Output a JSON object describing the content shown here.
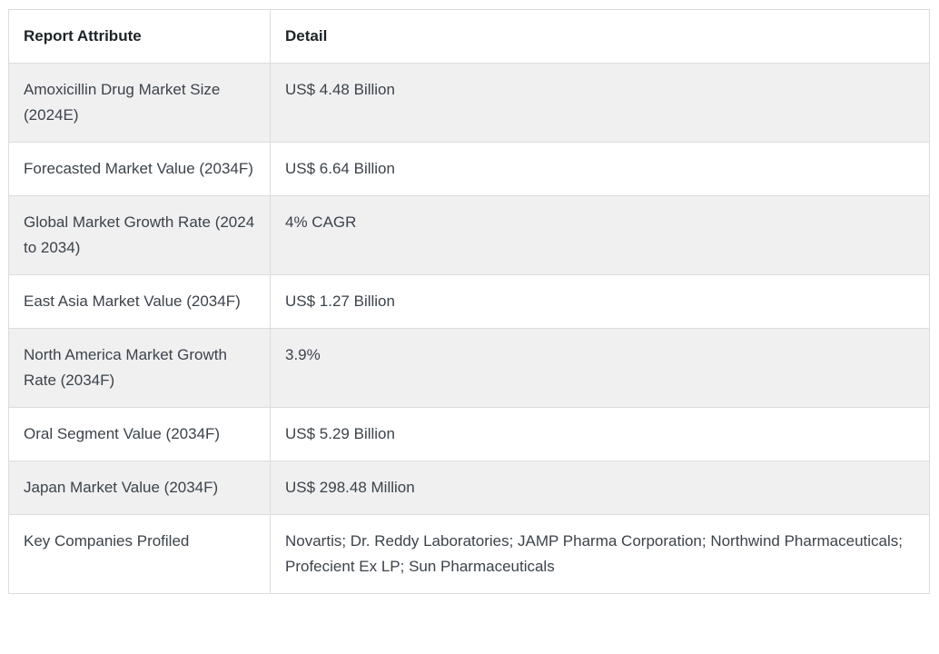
{
  "table": {
    "columns": [
      "Report Attribute",
      "Detail"
    ],
    "rows": [
      {
        "attribute": "Amoxicillin Drug Market Size (2024E)",
        "detail": "US$ 4.48 Billion"
      },
      {
        "attribute": "Forecasted Market Value (2034F)",
        "detail": "US$ 6.64 Billion"
      },
      {
        "attribute": "Global Market Growth Rate (2024 to 2034)",
        "detail": "4% CAGR"
      },
      {
        "attribute": "East Asia Market Value (2034F)",
        "detail": "US$ 1.27 Billion"
      },
      {
        "attribute": "North America Market Growth Rate (2034F)",
        "detail": "3.9%"
      },
      {
        "attribute": "Oral Segment Value (2034F)",
        "detail": "US$ 5.29 Billion"
      },
      {
        "attribute": "Japan Market Value (2034F)",
        "detail": "US$ 298.48 Million"
      },
      {
        "attribute": "Key Companies Profiled",
        "detail": "Novartis; Dr. Reddy Laboratories; JAMP Pharma Corporation; Northwind Pharmaceuticals; Profecient Ex LP; Sun Pharmaceuticals"
      }
    ]
  },
  "chart_data": {
    "type": "table",
    "columns": [
      "Report Attribute",
      "Detail"
    ],
    "rows": [
      [
        "Amoxicillin Drug Market Size (2024E)",
        "US$ 4.48 Billion"
      ],
      [
        "Forecasted Market Value (2034F)",
        "US$ 6.64 Billion"
      ],
      [
        "Global Market Growth Rate (2024 to 2034)",
        "4% CAGR"
      ],
      [
        "East Asia Market Value (2034F)",
        "US$ 1.27 Billion"
      ],
      [
        "North America Market Growth Rate (2034F)",
        "3.9%"
      ],
      [
        "Oral Segment Value (2034F)",
        "US$ 5.29 Billion"
      ],
      [
        "Japan Market Value (2034F)",
        "US$ 298.48 Million"
      ],
      [
        "Key Companies Profiled",
        "Novartis; Dr. Reddy Laboratories; JAMP Pharma Corporation; Northwind Pharmaceuticals; Profecient Ex LP; Sun Pharmaceuticals"
      ]
    ]
  },
  "colors": {
    "background": "#ffffff",
    "row_stripe": "#f0f0f1",
    "border": "#dcdcde",
    "header_text": "#1d2327",
    "body_text": "#3c434a"
  }
}
